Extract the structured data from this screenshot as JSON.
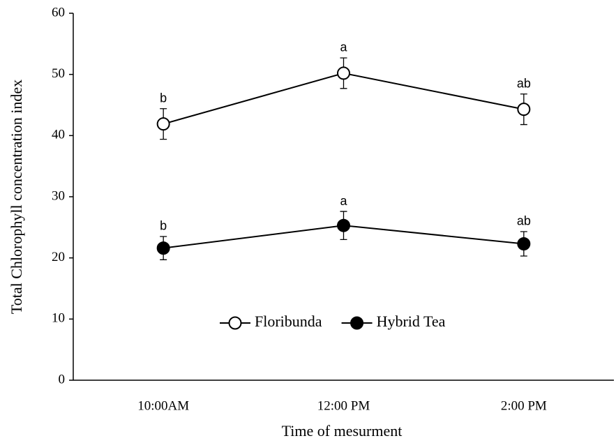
{
  "chart_data": {
    "type": "line",
    "xlabel": "Time of mesurment",
    "ylabel": "Total Chlorophyll concentration index",
    "categories": [
      "10:00AM",
      "12:00 PM",
      "2:00 PM"
    ],
    "series": [
      {
        "name": "Floribunda",
        "color": "#000000",
        "marker": "open-circle",
        "values": [
          41.9,
          50.2,
          44.3
        ],
        "errors": [
          2.5,
          2.5,
          2.5
        ],
        "labels": [
          "b",
          "a",
          "ab"
        ]
      },
      {
        "name": "Hybrid Tea",
        "color": "#000000",
        "marker": "filled-circle",
        "values": [
          21.6,
          25.3,
          22.3
        ],
        "errors": [
          1.9,
          2.3,
          2.0
        ],
        "labels": [
          "b",
          "a",
          "ab"
        ]
      }
    ],
    "ylim": [
      0,
      60
    ],
    "yticks": [
      0,
      10,
      20,
      30,
      40,
      50,
      60
    ],
    "legend": "center",
    "grid": false
  }
}
